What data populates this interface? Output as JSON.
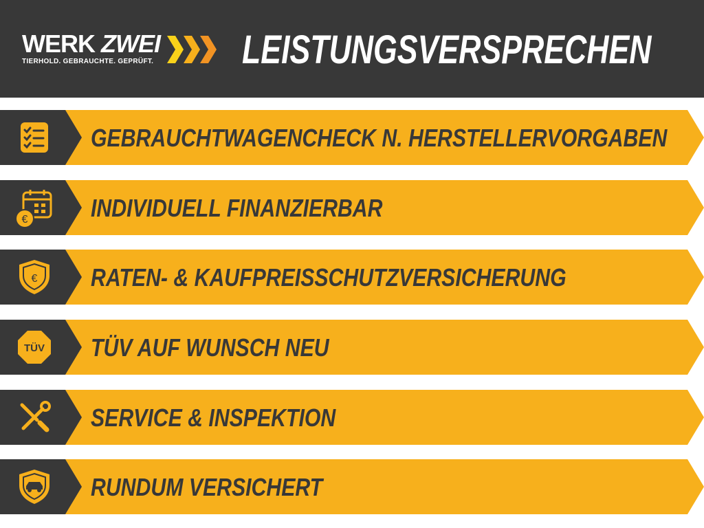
{
  "header": {
    "logo": {
      "word1": "WERK",
      "word2": "ZWEI",
      "tagline": "TIERHOLD. GEBRAUCHTE. GEPRÜFT."
    },
    "title": "LEISTUNGSVERSPRECHEN"
  },
  "colors": {
    "dark": "#383838",
    "accent": "#f7b01c"
  },
  "items": [
    {
      "label": "GEBRAUCHTWAGENCHECK N. HERSTELLERVORGABEN",
      "icon": "checklist-icon"
    },
    {
      "label": "INDIVIDUELL FINANZIERBAR",
      "icon": "calendar-euro-icon"
    },
    {
      "label": "RATEN- & KAUFPREISSCHUTZVERSICHERUNG",
      "icon": "shield-euro-icon"
    },
    {
      "label": "TÜV AUF WUNSCH NEU",
      "icon": "tuev-badge-icon",
      "icon_text": "TÜV"
    },
    {
      "label": "SERVICE & INSPEKTION",
      "icon": "tools-icon"
    },
    {
      "label": "RUNDUM VERSICHERT",
      "icon": "shield-car-icon"
    }
  ]
}
